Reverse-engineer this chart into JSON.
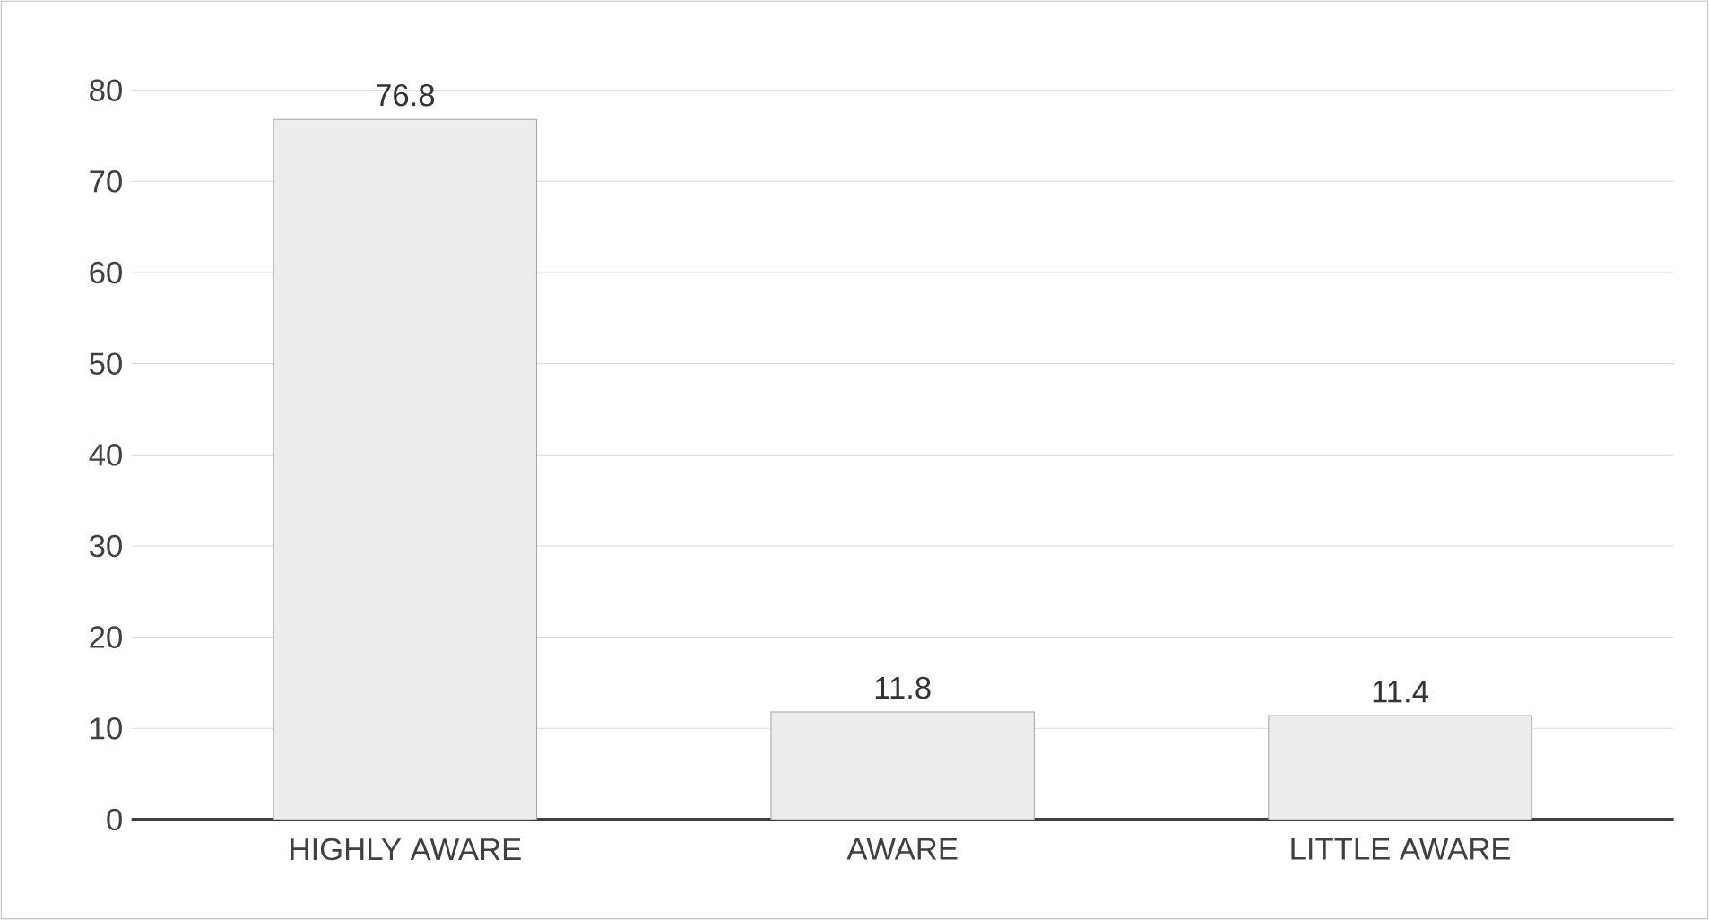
{
  "chart_data": {
    "type": "bar",
    "categories": [
      "HIGHLY AWARE",
      "AWARE",
      "LITTLE AWARE"
    ],
    "values": [
      76.8,
      11.8,
      11.4
    ],
    "color": "#ededed",
    "ylim": [
      0,
      80
    ],
    "yticks": [
      0,
      10,
      20,
      30,
      40,
      50,
      60,
      70,
      80
    ],
    "grid": "y",
    "data_labels": true
  }
}
